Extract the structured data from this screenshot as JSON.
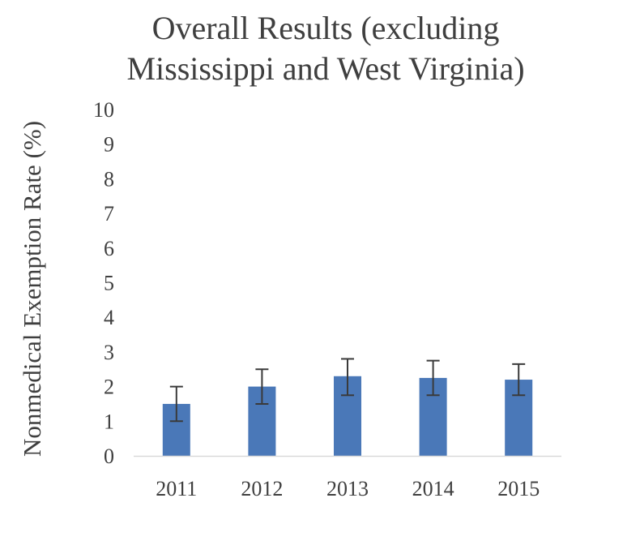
{
  "chart_data": {
    "type": "bar",
    "title_lines": [
      "Overall Results (excluding",
      "Mississippi and West Virginia)"
    ],
    "ylabel": "Nonmedical Exemption Rate (%)",
    "xlabel": "",
    "categories": [
      "2011",
      "2012",
      "2013",
      "2014",
      "2015"
    ],
    "values": [
      1.5,
      2.0,
      2.3,
      2.25,
      2.2
    ],
    "error_low": [
      1.0,
      1.5,
      1.75,
      1.75,
      1.75
    ],
    "error_high": [
      2.0,
      2.5,
      2.8,
      2.75,
      2.65
    ],
    "ylim": [
      0,
      10
    ],
    "yticks": [
      "0",
      "1",
      "2",
      "3",
      "4",
      "5",
      "6",
      "7",
      "8",
      "9",
      "10"
    ],
    "grid": false,
    "colors": {
      "bar": "#4a78b8",
      "error": "#3a3a3a",
      "axis": "#d9d9d9"
    }
  }
}
